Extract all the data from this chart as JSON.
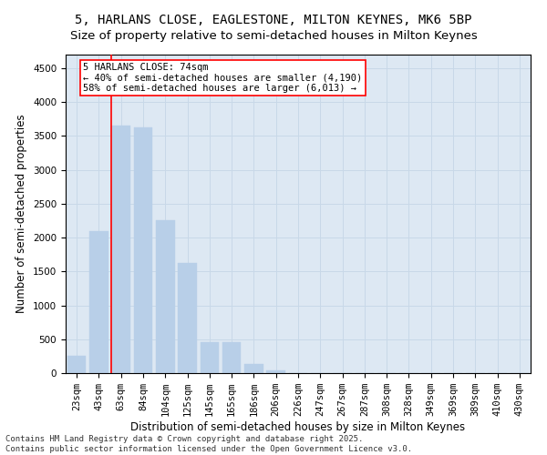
{
  "title_line1": "5, HARLANS CLOSE, EAGLESTONE, MILTON KEYNES, MK6 5BP",
  "title_line2": "Size of property relative to semi-detached houses in Milton Keynes",
  "xlabel": "Distribution of semi-detached houses by size in Milton Keynes",
  "ylabel": "Number of semi-detached properties",
  "categories": [
    "23sqm",
    "43sqm",
    "63sqm",
    "84sqm",
    "104sqm",
    "125sqm",
    "145sqm",
    "165sqm",
    "186sqm",
    "206sqm",
    "226sqm",
    "247sqm",
    "267sqm",
    "287sqm",
    "308sqm",
    "328sqm",
    "349sqm",
    "369sqm",
    "389sqm",
    "410sqm",
    "430sqm"
  ],
  "values": [
    250,
    2100,
    3650,
    3620,
    2250,
    1620,
    450,
    450,
    130,
    40,
    5,
    2,
    1,
    0,
    0,
    0,
    0,
    0,
    0,
    0,
    0
  ],
  "bar_color": "#b8cfe8",
  "bar_edge_color": "#b8cfe8",
  "grid_color": "#c8d8e8",
  "background_color": "#dde8f3",
  "vline_color": "red",
  "vline_pos": 1.575,
  "annotation_text": "5 HARLANS CLOSE: 74sqm\n← 40% of semi-detached houses are smaller (4,190)\n58% of semi-detached houses are larger (6,013) →",
  "ylim": [
    0,
    4700
  ],
  "yticks": [
    0,
    500,
    1000,
    1500,
    2000,
    2500,
    3000,
    3500,
    4000,
    4500
  ],
  "footer_line1": "Contains HM Land Registry data © Crown copyright and database right 2025.",
  "footer_line2": "Contains public sector information licensed under the Open Government Licence v3.0.",
  "title_fontsize": 10,
  "subtitle_fontsize": 9.5,
  "axis_label_fontsize": 8.5,
  "tick_fontsize": 7.5,
  "annotation_fontsize": 7.5,
  "footer_fontsize": 6.5
}
